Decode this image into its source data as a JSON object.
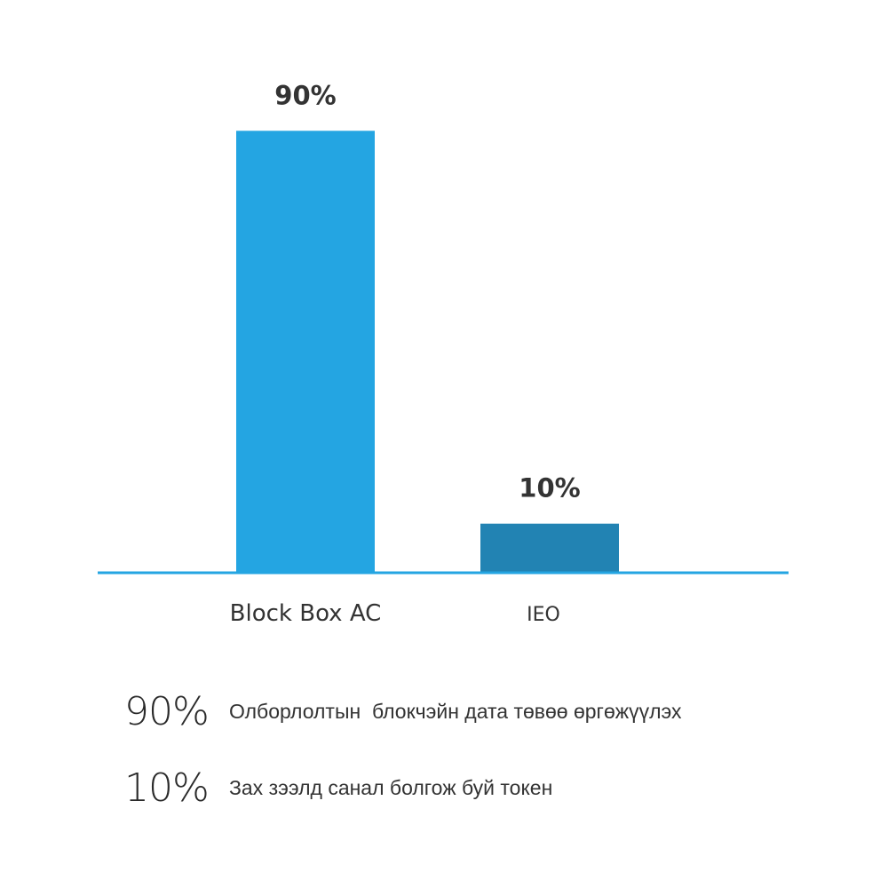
{
  "chart_data": {
    "type": "bar",
    "categories": [
      "Block Box AC",
      "IEO"
    ],
    "values": [
      90,
      10
    ],
    "value_labels": [
      "90%",
      "10%"
    ],
    "colors": [
      "#24a5e2",
      "#2283b3"
    ],
    "axis_color": "#24a5e2",
    "ylim": [
      0,
      100
    ],
    "grid": false
  },
  "legend": [
    {
      "pct": "90%",
      "desc": "Олборлолтын  блокчэйн дата төвөө өргөжүүлэх"
    },
    {
      "pct": "10%",
      "desc": "Зах зээлд санал болгож буй токен"
    }
  ]
}
